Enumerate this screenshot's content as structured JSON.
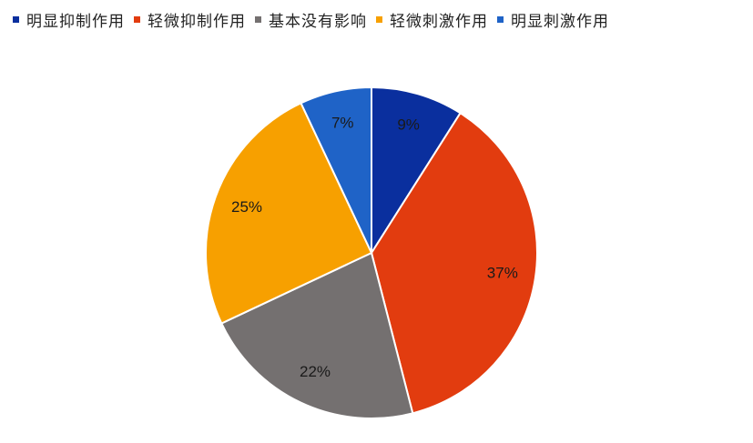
{
  "chart_data": {
    "type": "pie",
    "legend_position": "top",
    "slices": [
      {
        "name": "明显抑制作用",
        "value": 9,
        "label": "9%",
        "color": "#0a2f9e"
      },
      {
        "name": "轻微抑制作用",
        "value": 37,
        "label": "37%",
        "color": "#e23c0f"
      },
      {
        "name": "基本没有影响",
        "value": 22,
        "label": "22%",
        "color": "#747070"
      },
      {
        "name": "轻微刺激作用",
        "value": 25,
        "label": "25%",
        "color": "#f7a000"
      },
      {
        "name": "明显刺激作用",
        "value": 7,
        "label": "7%",
        "color": "#1f63c7"
      }
    ]
  }
}
